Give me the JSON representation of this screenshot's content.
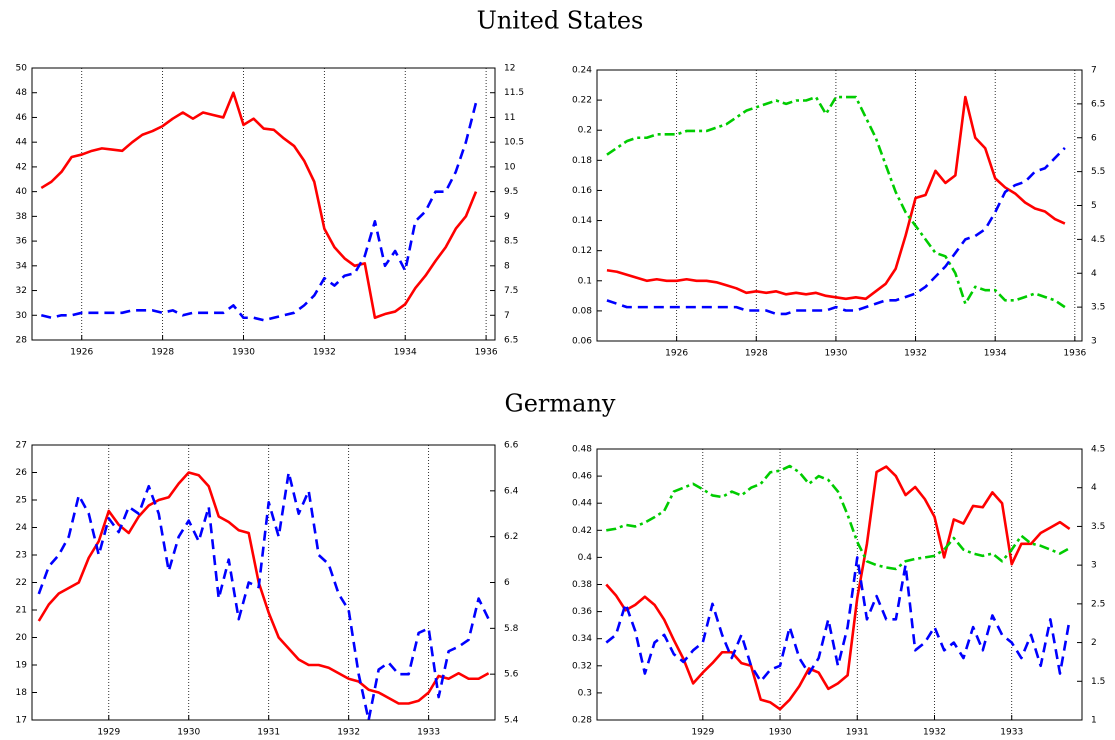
{
  "sections": [
    {
      "title": "United States"
    },
    {
      "title": "Germany"
    }
  ],
  "chart_data": [
    {
      "type": "line",
      "grid": "x",
      "x": [
        1925,
        1925.25,
        1925.5,
        1925.75,
        1926,
        1926.25,
        1926.5,
        1926.75,
        1927,
        1927.25,
        1927.5,
        1927.75,
        1928,
        1928.25,
        1928.5,
        1928.75,
        1929,
        1929.25,
        1929.5,
        1929.75,
        1930,
        1930.25,
        1930.5,
        1930.75,
        1931,
        1931.25,
        1931.5,
        1931.75,
        1932,
        1932.25,
        1932.5,
        1932.75,
        1933,
        1933.25,
        1933.5,
        1933.75,
        1934,
        1934.25,
        1934.5,
        1934.75,
        1935,
        1935.25,
        1935.5,
        1935.75
      ],
      "xlim": [
        1924.77,
        1936.22
      ],
      "xticks": [
        1926,
        1928,
        1930,
        1932,
        1934,
        1936
      ],
      "ylim": [
        28,
        50
      ],
      "yticks": [
        28,
        30,
        32,
        34,
        36,
        38,
        40,
        42,
        44,
        46,
        48,
        50
      ],
      "y2lim": [
        6.5,
        12
      ],
      "y2ticks": [
        6.5,
        7,
        7.5,
        8,
        8.5,
        9,
        9.5,
        10,
        10.5,
        11,
        11.5,
        12
      ],
      "series": [
        {
          "color": "#ff0000",
          "style": "solid",
          "values": [
            40.3,
            40.8,
            41.6,
            42.8,
            43.0,
            43.3,
            43.5,
            43.4,
            43.3,
            44.0,
            44.6,
            44.9,
            45.3,
            45.9,
            46.4,
            45.9,
            46.4,
            46.2,
            46.0,
            48.0,
            45.4,
            45.9,
            45.1,
            45.0,
            44.3,
            43.7,
            42.5,
            40.8,
            37.0,
            35.5,
            34.6,
            34.0,
            34.2,
            29.8,
            30.1,
            30.3,
            30.9,
            32.2,
            33.2,
            34.4,
            35.5,
            37.0,
            38.0,
            40.0
          ]
        },
        {
          "color": "#0000ff",
          "style": "dashed",
          "axis": "y2",
          "values": [
            7.0,
            6.95,
            7.0,
            7.0,
            7.05,
            7.05,
            7.05,
            7.05,
            7.05,
            7.1,
            7.1,
            7.1,
            7.05,
            7.1,
            7.0,
            7.05,
            7.05,
            7.05,
            7.05,
            7.2,
            6.95,
            6.95,
            6.9,
            6.95,
            7.0,
            7.05,
            7.2,
            7.4,
            7.75,
            7.6,
            7.8,
            7.85,
            8.2,
            8.9,
            8.0,
            8.3,
            7.9,
            8.9,
            9.1,
            9.5,
            9.5,
            9.9,
            10.5,
            11.3
          ]
        }
      ]
    },
    {
      "type": "line",
      "grid": "x",
      "x": [
        1924.25,
        1924.5,
        1924.75,
        1925,
        1925.25,
        1925.5,
        1925.75,
        1926,
        1926.25,
        1926.5,
        1926.75,
        1927,
        1927.25,
        1927.5,
        1927.75,
        1928,
        1928.25,
        1928.5,
        1928.75,
        1929,
        1929.25,
        1929.5,
        1929.75,
        1930,
        1930.25,
        1930.5,
        1930.75,
        1931,
        1931.25,
        1931.5,
        1931.75,
        1932,
        1932.25,
        1932.5,
        1932.75,
        1933,
        1933.25,
        1933.5,
        1933.75,
        1934,
        1934.25,
        1934.5,
        1934.75,
        1935,
        1935.25,
        1935.5,
        1935.75
      ],
      "xlim": [
        1924,
        1936.18
      ],
      "xticks": [
        1926,
        1928,
        1930,
        1932,
        1934,
        1936
      ],
      "ylim": [
        0.06,
        0.24
      ],
      "yticks": [
        0.06,
        0.08,
        0.1,
        0.12,
        0.14,
        0.16,
        0.18,
        0.2,
        0.22,
        0.24
      ],
      "y2lim": [
        3,
        7
      ],
      "y2ticks": [
        3,
        3.5,
        4,
        4.5,
        5,
        5.5,
        6,
        6.5,
        7
      ],
      "series": [
        {
          "color": "#ff0000",
          "style": "solid",
          "values": [
            0.107,
            0.106,
            0.104,
            0.102,
            0.1,
            0.101,
            0.1,
            0.1,
            0.101,
            0.1,
            0.1,
            0.099,
            0.097,
            0.095,
            0.092,
            0.093,
            0.092,
            0.093,
            0.091,
            0.092,
            0.091,
            0.092,
            0.09,
            0.089,
            0.088,
            0.089,
            0.088,
            0.093,
            0.098,
            0.108,
            0.13,
            0.155,
            0.157,
            0.173,
            0.165,
            0.17,
            0.222,
            0.195,
            0.188,
            0.168,
            0.162,
            0.158,
            0.152,
            0.148,
            0.146,
            0.141,
            0.138
          ]
        },
        {
          "color": "#00cc00",
          "style": "dashdot",
          "axis": "y2",
          "values": [
            5.75,
            5.85,
            5.95,
            6.0,
            6.0,
            6.05,
            6.05,
            6.05,
            6.1,
            6.1,
            6.1,
            6.15,
            6.2,
            6.3,
            6.4,
            6.45,
            6.5,
            6.55,
            6.5,
            6.55,
            6.55,
            6.6,
            6.35,
            6.6,
            6.6,
            6.6,
            6.3,
            6.0,
            5.6,
            5.2,
            4.9,
            4.7,
            4.5,
            4.3,
            4.25,
            4.0,
            3.55,
            3.8,
            3.75,
            3.75,
            3.6,
            3.6,
            3.65,
            3.7,
            3.65,
            3.6,
            3.5
          ]
        },
        {
          "color": "#0000ff",
          "style": "dashed",
          "axis": "y2",
          "values": [
            3.6,
            3.55,
            3.5,
            3.5,
            3.5,
            3.5,
            3.5,
            3.5,
            3.5,
            3.5,
            3.5,
            3.5,
            3.5,
            3.5,
            3.45,
            3.45,
            3.45,
            3.4,
            3.4,
            3.45,
            3.45,
            3.45,
            3.45,
            3.5,
            3.45,
            3.45,
            3.5,
            3.55,
            3.6,
            3.6,
            3.65,
            3.7,
            3.8,
            3.95,
            4.1,
            4.3,
            4.5,
            4.55,
            4.65,
            4.9,
            5.2,
            5.3,
            5.35,
            5.5,
            5.55,
            5.7,
            5.85
          ]
        }
      ]
    },
    {
      "type": "line",
      "grid": "x",
      "x": [
        1928.125,
        1928.25,
        1928.375,
        1928.5,
        1928.625,
        1928.75,
        1928.875,
        1929,
        1929.125,
        1929.25,
        1929.375,
        1929.5,
        1929.625,
        1929.75,
        1929.875,
        1930,
        1930.125,
        1930.25,
        1930.375,
        1930.5,
        1930.625,
        1930.75,
        1930.875,
        1931,
        1931.125,
        1931.25,
        1931.375,
        1931.5,
        1931.625,
        1931.75,
        1931.875,
        1932,
        1932.125,
        1932.25,
        1932.375,
        1932.5,
        1932.625,
        1932.75,
        1932.875,
        1933,
        1933.125,
        1933.25,
        1933.375,
        1933.5,
        1933.625,
        1933.75
      ],
      "xlim": [
        1928.04,
        1933.83
      ],
      "xticks": [
        1929,
        1930,
        1931,
        1932,
        1933
      ],
      "ylim": [
        17,
        27
      ],
      "yticks": [
        17,
        18,
        19,
        20,
        21,
        22,
        23,
        24,
        25,
        26,
        27
      ],
      "y2lim": [
        5.4,
        6.6
      ],
      "y2ticks": [
        5.4,
        5.6,
        5.8,
        6,
        6.2,
        6.4,
        6.6
      ],
      "series": [
        {
          "color": "#ff0000",
          "style": "solid",
          "values": [
            20.6,
            21.2,
            21.6,
            21.8,
            22.0,
            22.9,
            23.5,
            24.6,
            24.1,
            23.8,
            24.4,
            24.8,
            25.0,
            25.1,
            25.6,
            26.0,
            25.9,
            25.5,
            24.4,
            24.2,
            23.9,
            23.8,
            22.0,
            20.9,
            20.0,
            19.6,
            19.2,
            19.0,
            19.0,
            18.9,
            18.7,
            18.5,
            18.4,
            18.1,
            18.0,
            17.8,
            17.6,
            17.6,
            17.7,
            18.0,
            18.6,
            18.5,
            18.7,
            18.5,
            18.5,
            18.7
          ]
        },
        {
          "color": "#0000ff",
          "style": "dashed",
          "axis": "y2",
          "values": [
            5.95,
            6.07,
            6.12,
            6.2,
            6.38,
            6.3,
            6.12,
            6.28,
            6.22,
            6.33,
            6.3,
            6.42,
            6.3,
            6.05,
            6.2,
            6.27,
            6.18,
            6.33,
            5.93,
            6.1,
            5.84,
            6.0,
            5.98,
            6.35,
            6.2,
            6.48,
            6.3,
            6.4,
            6.12,
            6.08,
            5.95,
            5.88,
            5.6,
            5.4,
            5.62,
            5.65,
            5.6,
            5.6,
            5.78,
            5.8,
            5.5,
            5.7,
            5.72,
            5.75,
            5.93,
            5.84
          ]
        }
      ]
    },
    {
      "type": "line",
      "grid": "x",
      "x": [
        1927.75,
        1927.875,
        1928,
        1928.125,
        1928.25,
        1928.375,
        1928.5,
        1928.625,
        1928.75,
        1928.875,
        1929,
        1929.125,
        1929.25,
        1929.375,
        1929.5,
        1929.625,
        1929.75,
        1929.875,
        1930,
        1930.125,
        1930.25,
        1930.375,
        1930.5,
        1930.625,
        1930.75,
        1930.875,
        1931,
        1931.125,
        1931.25,
        1931.375,
        1931.5,
        1931.625,
        1931.75,
        1931.875,
        1932,
        1932.125,
        1932.25,
        1932.375,
        1932.5,
        1932.625,
        1932.75,
        1932.875,
        1933,
        1933.125,
        1933.25,
        1933.375,
        1933.5,
        1933.625,
        1933.75
      ],
      "xlim": [
        1927.63,
        1933.91
      ],
      "xticks": [
        1929,
        1930,
        1931,
        1932,
        1933
      ],
      "ylim": [
        0.28,
        0.48
      ],
      "yticks": [
        0.28,
        0.3,
        0.32,
        0.34,
        0.36,
        0.38,
        0.4,
        0.42,
        0.44,
        0.46,
        0.48
      ],
      "y2lim": [
        1,
        4.5
      ],
      "y2ticks": [
        1,
        1.5,
        2,
        2.5,
        3,
        3.5,
        4,
        4.5
      ],
      "series": [
        {
          "color": "#ff0000",
          "style": "solid",
          "values": [
            0.38,
            0.372,
            0.361,
            0.365,
            0.371,
            0.365,
            0.354,
            0.339,
            0.325,
            0.307,
            0.315,
            0.322,
            0.33,
            0.33,
            0.322,
            0.32,
            0.295,
            0.293,
            0.288,
            0.295,
            0.305,
            0.318,
            0.315,
            0.303,
            0.307,
            0.313,
            0.37,
            0.41,
            0.463,
            0.467,
            0.46,
            0.446,
            0.452,
            0.443,
            0.43,
            0.4,
            0.428,
            0.425,
            0.438,
            0.437,
            0.448,
            0.44,
            0.395,
            0.41,
            0.41,
            0.418,
            0.422,
            0.426,
            0.421
          ]
        },
        {
          "color": "#00cc00",
          "style": "dashdot",
          "axis": "y2",
          "values": [
            3.45,
            3.47,
            3.52,
            3.5,
            3.55,
            3.62,
            3.7,
            3.95,
            4.0,
            4.05,
            3.98,
            3.9,
            3.88,
            3.95,
            3.9,
            4.0,
            4.05,
            4.2,
            4.22,
            4.28,
            4.2,
            4.05,
            4.15,
            4.1,
            3.95,
            3.65,
            3.3,
            3.05,
            3.0,
            2.97,
            2.95,
            3.05,
            3.08,
            3.1,
            3.12,
            3.2,
            3.35,
            3.2,
            3.15,
            3.12,
            3.15,
            3.05,
            3.2,
            3.38,
            3.28,
            3.25,
            3.2,
            3.15,
            3.22
          ]
        },
        {
          "color": "#0000ff",
          "style": "dashed",
          "axis": "y2",
          "values": [
            2.0,
            2.1,
            2.5,
            2.15,
            1.6,
            2.0,
            2.1,
            1.85,
            1.75,
            1.9,
            2.0,
            2.5,
            2.1,
            1.8,
            2.1,
            1.7,
            1.5,
            1.65,
            1.7,
            2.2,
            1.8,
            1.6,
            1.8,
            2.3,
            1.7,
            2.2,
            3.1,
            2.3,
            2.6,
            2.3,
            2.3,
            3.0,
            1.9,
            2.0,
            2.2,
            1.9,
            2.0,
            1.8,
            2.2,
            1.9,
            2.35,
            2.1,
            2.0,
            1.8,
            2.1,
            1.7,
            2.3,
            1.6,
            2.3
          ]
        }
      ]
    }
  ]
}
